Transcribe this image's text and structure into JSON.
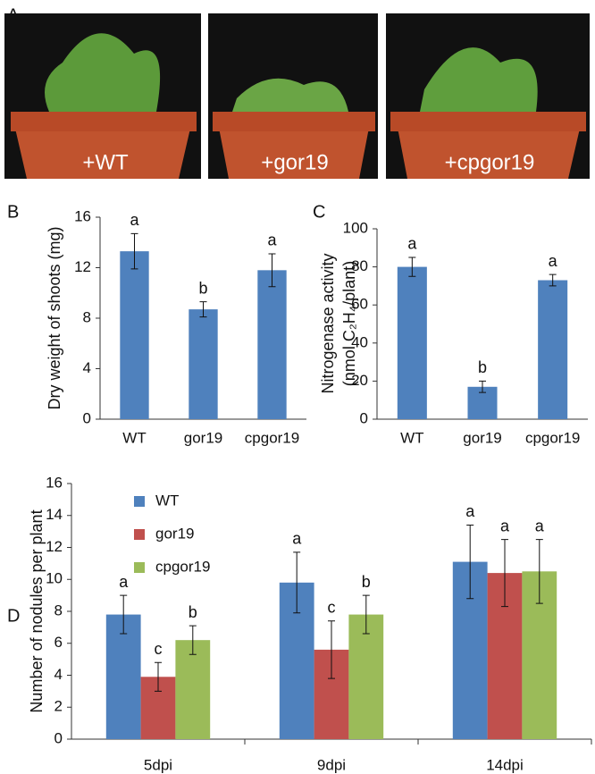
{
  "panel_a": "A",
  "photos": [
    {
      "label": "+WT"
    },
    {
      "label": "+gor19"
    },
    {
      "label": "+cpgor19"
    }
  ],
  "chart_data": [
    {
      "type": "bar",
      "panel": "B",
      "y_label": [
        "Dry weight of shoots (mg)"
      ],
      "categories": [
        "WT",
        "gor19",
        "cpgor19"
      ],
      "values": [
        13.3,
        8.7,
        11.8
      ],
      "errors": [
        1.4,
        0.6,
        1.3
      ],
      "letters": [
        "a",
        "b",
        "a"
      ],
      "color": "#4f81bd",
      "ylim": [
        0,
        16
      ],
      "yticks": [
        0,
        4,
        8,
        12,
        16
      ]
    },
    {
      "type": "bar",
      "panel": "C",
      "y_label": [
        "Nitrogenase activity",
        "(nmol C₂H₄/plant)"
      ],
      "categories": [
        "WT",
        "gor19",
        "cpgor19"
      ],
      "values": [
        80,
        17,
        73
      ],
      "errors": [
        5,
        3,
        3
      ],
      "letters": [
        "a",
        "b",
        "a"
      ],
      "color": "#4f81bd",
      "ylim": [
        0,
        100
      ],
      "yticks": [
        0,
        20,
        40,
        60,
        80,
        100
      ]
    },
    {
      "type": "grouped-bar",
      "panel": "D",
      "y_label": [
        "Number of nodules  per plant"
      ],
      "categories": [
        "5dpi",
        "9dpi",
        "14dpi"
      ],
      "series": [
        {
          "name": "WT",
          "color": "#4f81bd",
          "values": [
            7.8,
            9.8,
            11.1
          ],
          "errors": [
            1.2,
            1.9,
            2.3
          ],
          "letters": [
            "a",
            "a",
            "a"
          ]
        },
        {
          "name": "gor19",
          "color": "#c0504d",
          "values": [
            3.9,
            5.6,
            10.4
          ],
          "errors": [
            0.9,
            1.8,
            2.1
          ],
          "letters": [
            "c",
            "c",
            "a"
          ]
        },
        {
          "name": "cpgor19",
          "color": "#9bbb59",
          "values": [
            6.2,
            7.8,
            10.5
          ],
          "errors": [
            0.9,
            1.2,
            2.0
          ],
          "letters": [
            "b",
            "b",
            "a"
          ]
        }
      ],
      "ylim": [
        0,
        16
      ],
      "yticks": [
        0,
        2,
        4,
        6,
        8,
        10,
        12,
        14,
        16
      ]
    }
  ]
}
